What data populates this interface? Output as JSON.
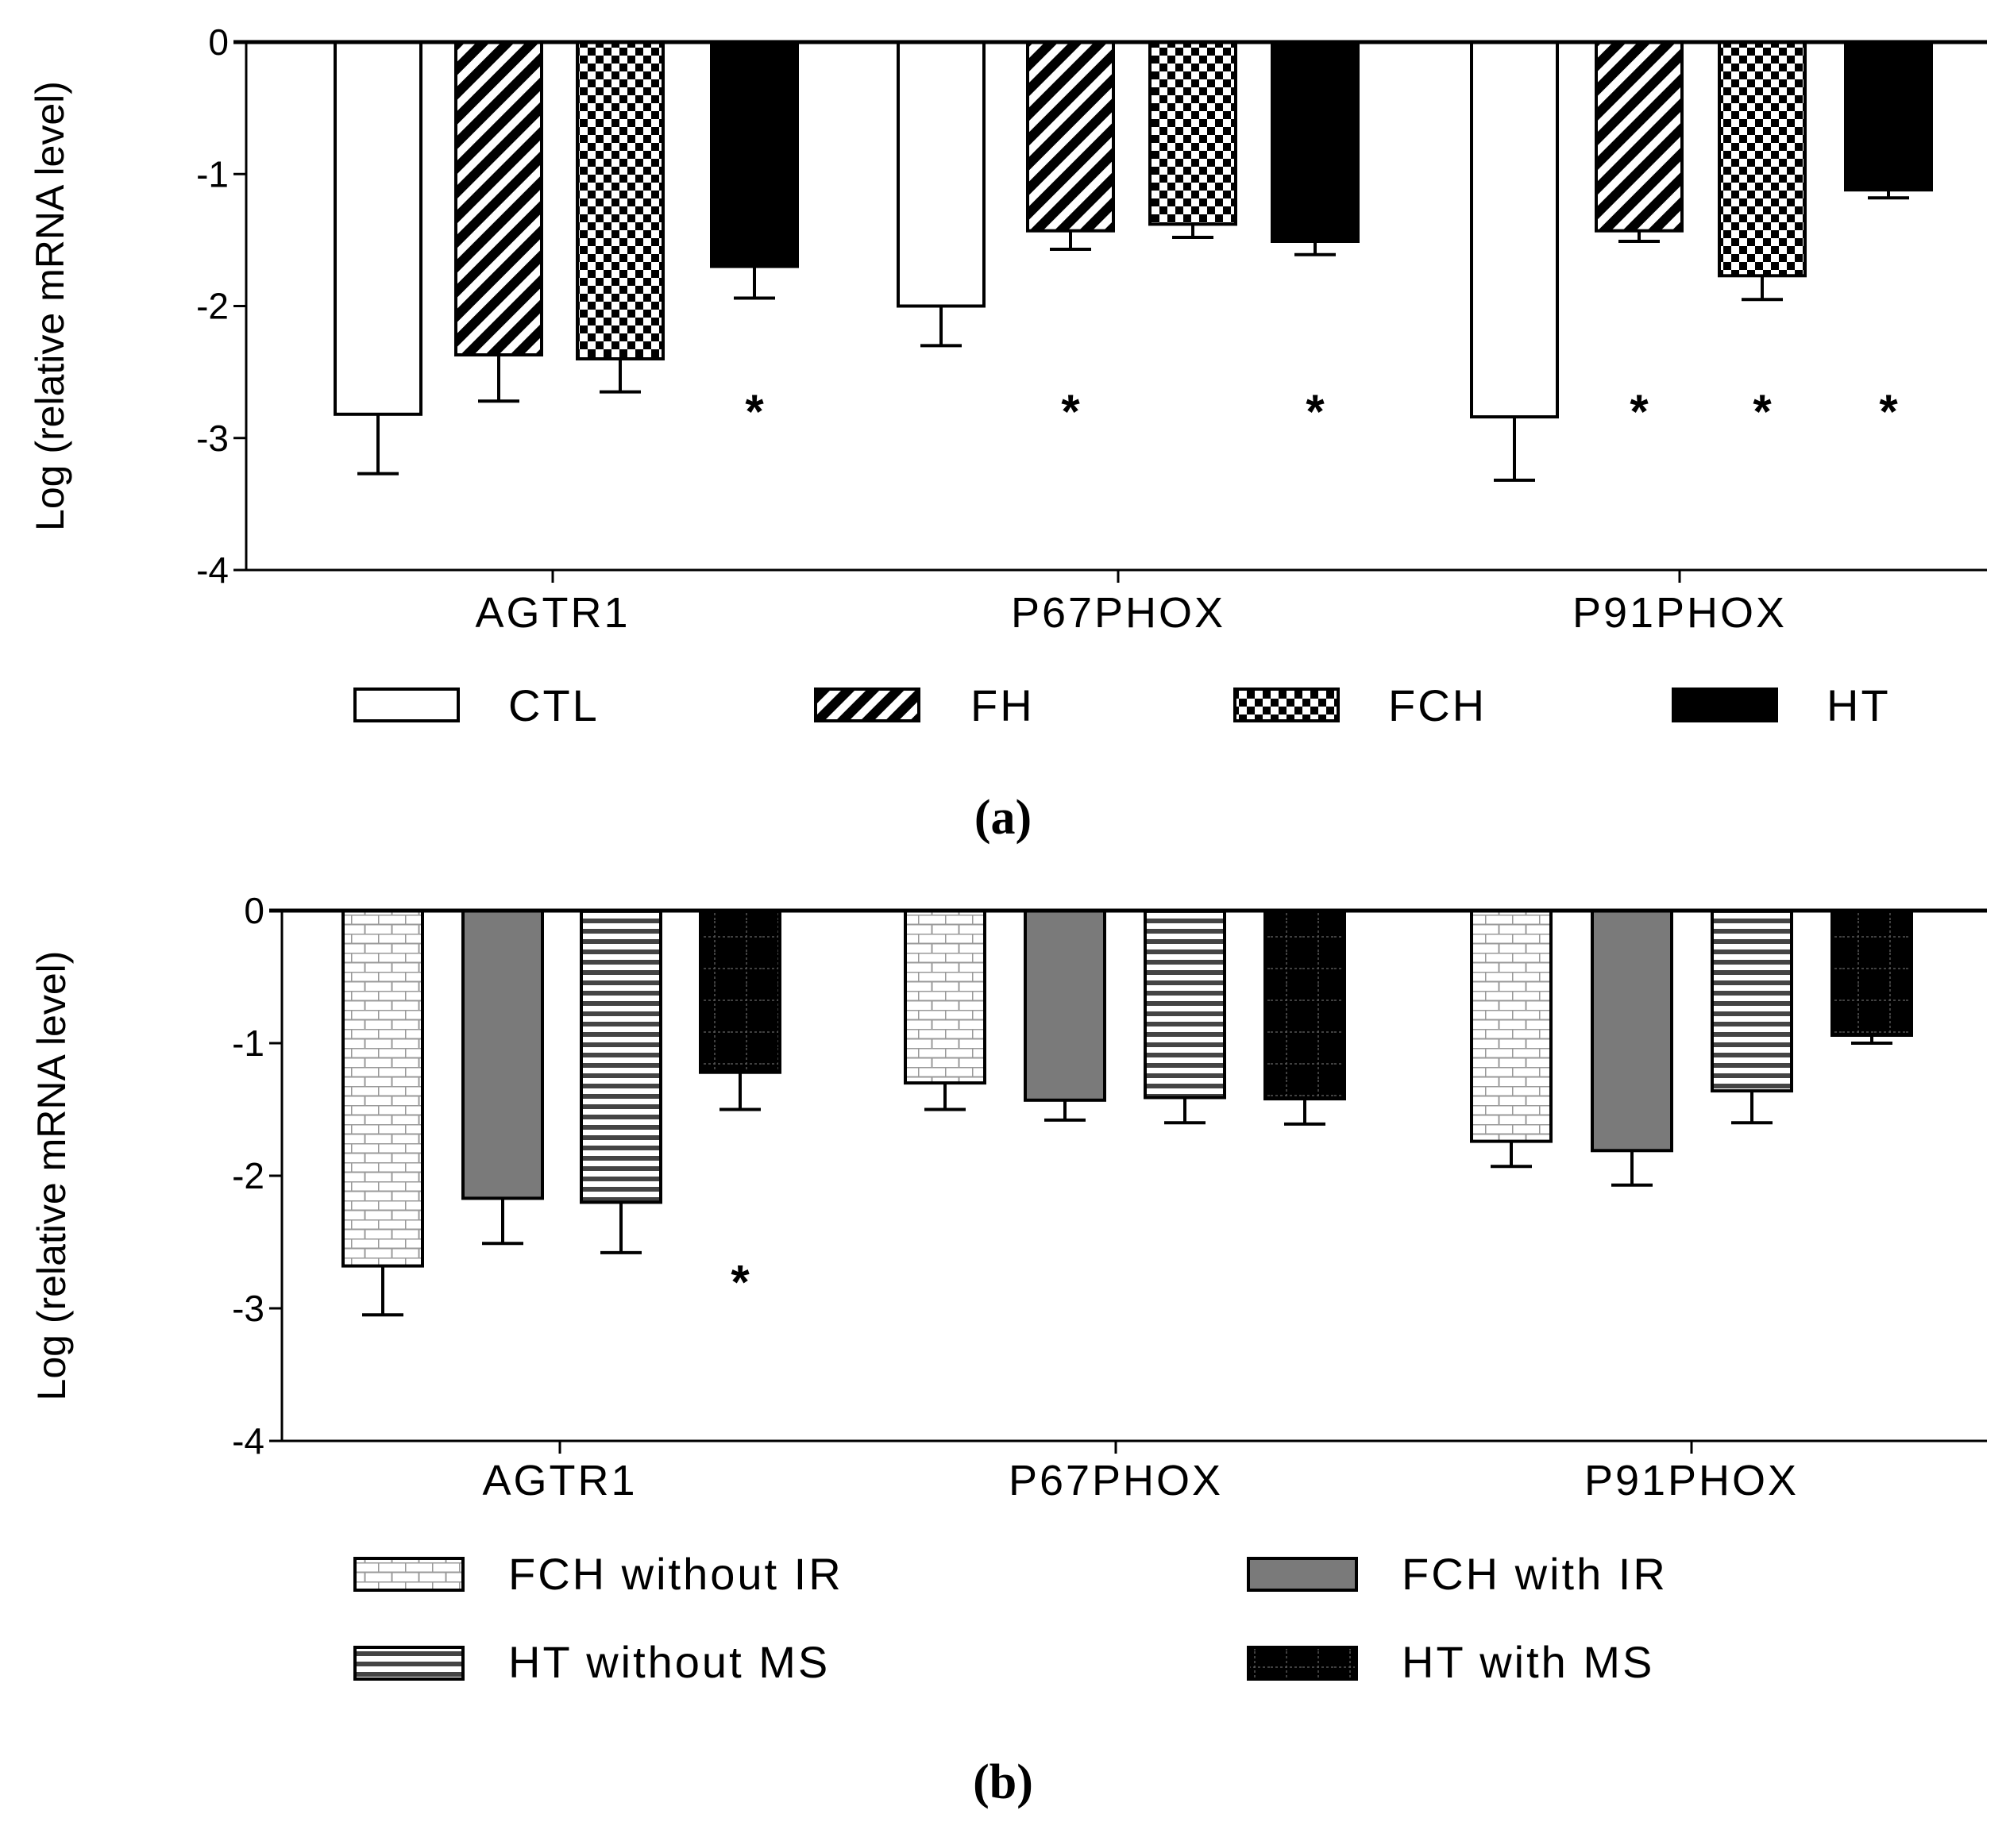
{
  "colors": {
    "axis": "#000000",
    "bar_fill_black": "#000000",
    "bar_fill_white": "#ffffff",
    "bar_fill_gray": "#7a7a7a",
    "light_pattern": "#b5b5b5"
  },
  "chart_data": [
    {
      "type": "bar",
      "panel_label": "(a)",
      "ylabel": "Log (relative mRNA level)",
      "xlabel": "",
      "ylim": [
        -4,
        0
      ],
      "yticks": [
        "0",
        "-1",
        "-2",
        "-3",
        "-4"
      ],
      "ytick_values": [
        0,
        -1,
        -2,
        -3,
        -4
      ],
      "categories": [
        "AGTR1",
        "P67PHOX",
        "P91PHOX"
      ],
      "legend_layout": "single row below x-axis",
      "series": [
        {
          "name": "CTL",
          "pattern": "white",
          "values": [
            -2.82,
            -2.0,
            -2.84
          ],
          "errors": [
            0.45,
            0.3,
            0.48
          ],
          "significant": [
            false,
            false,
            false
          ]
        },
        {
          "name": "FH",
          "pattern": "diagonal",
          "values": [
            -2.37,
            -1.43,
            -1.43
          ],
          "errors": [
            0.35,
            0.14,
            0.08
          ],
          "significant": [
            false,
            true,
            true
          ]
        },
        {
          "name": "FCH",
          "pattern": "checker",
          "values": [
            -2.4,
            -1.38,
            -1.77
          ],
          "errors": [
            0.25,
            0.1,
            0.18
          ],
          "significant": [
            false,
            false,
            true
          ]
        },
        {
          "name": "HT",
          "pattern": "black",
          "values": [
            -1.7,
            -1.51,
            -1.12
          ],
          "errors": [
            0.24,
            0.1,
            0.06
          ],
          "significant": [
            true,
            true,
            true
          ]
        }
      ],
      "significance_marker": "*"
    },
    {
      "type": "bar",
      "panel_label": "(b)",
      "ylabel": "Log (relative mRNA level)",
      "xlabel": "",
      "ylim": [
        -4,
        0
      ],
      "yticks": [
        "0",
        "-1",
        "-2",
        "-3",
        "-4"
      ],
      "ytick_values": [
        0,
        -1,
        -2,
        -3,
        -4
      ],
      "categories": [
        "AGTR1",
        "P67PHOX",
        "P91PHOX"
      ],
      "legend_layout": "two rows below x-axis",
      "series": [
        {
          "name": "FCH without IR",
          "pattern": "brick",
          "values": [
            -2.68,
            -1.3,
            -1.74
          ],
          "errors": [
            0.37,
            0.2,
            0.19
          ],
          "significant": [
            false,
            false,
            false
          ]
        },
        {
          "name": "FCH with IR",
          "pattern": "gray",
          "values": [
            -2.17,
            -1.43,
            -1.81
          ],
          "errors": [
            0.34,
            0.15,
            0.26
          ],
          "significant": [
            false,
            false,
            false
          ]
        },
        {
          "name": "HT without MS",
          "pattern": "hstripe",
          "values": [
            -2.2,
            -1.41,
            -1.36
          ],
          "errors": [
            0.38,
            0.19,
            0.24
          ],
          "significant": [
            false,
            false,
            false
          ]
        },
        {
          "name": "HT with MS",
          "pattern": "black-grid",
          "values": [
            -1.22,
            -1.42,
            -0.94
          ],
          "errors": [
            0.28,
            0.19,
            0.06
          ],
          "significant": [
            true,
            false,
            false
          ]
        }
      ],
      "significance_marker": "*"
    }
  ]
}
